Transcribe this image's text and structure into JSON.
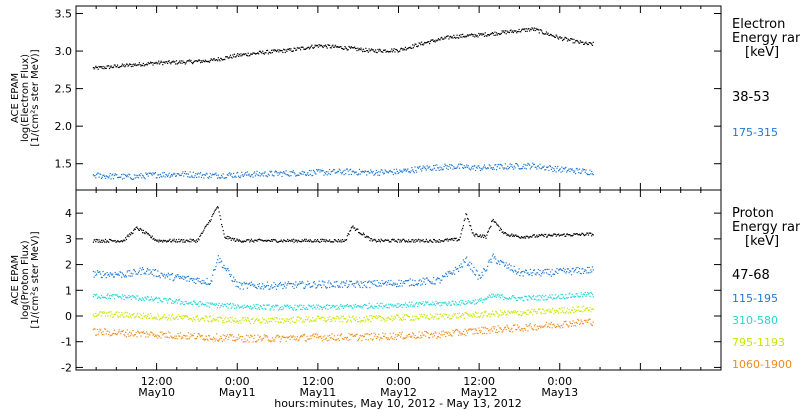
{
  "xaxis": {
    "label": "hours:minutes, May 10, 2012 - May 13, 2012",
    "range_hours": [
      0,
      96
    ],
    "ticks": [
      {
        "t": 12,
        "time": "12:00",
        "day": "May10"
      },
      {
        "t": 24,
        "time": "0:00",
        "day": "May11"
      },
      {
        "t": 36,
        "time": "12:00",
        "day": "May11"
      },
      {
        "t": 48,
        "time": "0:00",
        "day": "May12"
      },
      {
        "t": 60,
        "time": "12:00",
        "day": "May12"
      },
      {
        "t": 72,
        "time": "0:00",
        "day": "May13"
      }
    ]
  },
  "chart_data": [
    {
      "type": "scatter",
      "panel": "electron",
      "ylabel": [
        "ACE EPAM",
        "log(Electron Flux)",
        "[1/(cm²s ster MeV)]"
      ],
      "ylim": [
        1.15,
        3.6
      ],
      "yticks": [
        "1.5",
        "2.0",
        "2.5",
        "3.0",
        "3.5"
      ],
      "legend_title": [
        "Electron",
        "Energy ran",
        "[keV]"
      ],
      "series": [
        {
          "name": "38-53",
          "color": "#000000",
          "x": [
            3,
            8,
            12,
            16,
            20,
            24,
            28,
            32,
            36,
            40,
            44,
            48,
            52,
            56,
            60,
            64,
            68,
            72,
            76
          ],
          "y": [
            2.78,
            2.82,
            2.85,
            2.86,
            2.88,
            2.95,
            2.99,
            3.02,
            3.08,
            3.05,
            3.01,
            3.02,
            3.12,
            3.2,
            3.22,
            3.26,
            3.3,
            3.18,
            3.1
          ]
        },
        {
          "name": "175-315",
          "color": "#1f78d2",
          "x": [
            3,
            8,
            12,
            16,
            20,
            24,
            28,
            32,
            36,
            40,
            44,
            48,
            52,
            56,
            60,
            64,
            68,
            72,
            76
          ],
          "y": [
            1.35,
            1.33,
            1.36,
            1.37,
            1.35,
            1.36,
            1.37,
            1.38,
            1.39,
            1.4,
            1.39,
            1.4,
            1.45,
            1.47,
            1.45,
            1.47,
            1.48,
            1.43,
            1.4
          ]
        }
      ]
    },
    {
      "type": "scatter",
      "panel": "proton",
      "ylabel": [
        "ACE EPAM",
        "log(Proton Flux)",
        "[1/(cm²s ster MeV)]"
      ],
      "ylim": [
        -2.1,
        4.9
      ],
      "yticks": [
        "-2",
        "-1",
        "0",
        "1",
        "2",
        "3",
        "4"
      ],
      "legend_title": [
        "Proton",
        "Energy ran",
        "[keV]"
      ],
      "series": [
        {
          "name": "47-68",
          "color": "#000000",
          "x": [
            3,
            7,
            9,
            12,
            18,
            20,
            21,
            22,
            24,
            30,
            36,
            40,
            41,
            44,
            48,
            54,
            57,
            58,
            59,
            61,
            62,
            63,
            64,
            66,
            70,
            76
          ],
          "y": [
            2.95,
            2.95,
            3.45,
            2.95,
            2.95,
            3.8,
            4.3,
            3.1,
            2.95,
            2.95,
            2.95,
            2.95,
            3.5,
            2.95,
            2.95,
            2.95,
            3.0,
            4.0,
            3.2,
            3.1,
            3.8,
            3.4,
            3.2,
            3.1,
            3.15,
            3.2
          ]
        },
        {
          "name": "115-195",
          "color": "#1f78d2",
          "x": [
            3,
            8,
            10,
            14,
            20,
            21,
            24,
            30,
            36,
            42,
            48,
            54,
            57,
            58,
            60,
            62,
            63,
            66,
            70,
            76
          ],
          "y": [
            1.65,
            1.65,
            1.8,
            1.55,
            1.35,
            2.3,
            1.2,
            1.2,
            1.25,
            1.25,
            1.3,
            1.4,
            1.9,
            2.2,
            1.5,
            2.3,
            2.1,
            1.7,
            1.7,
            1.8
          ]
        },
        {
          "name": "310-580",
          "color": "#22d6d6",
          "x": [
            3,
            8,
            12,
            16,
            20,
            24,
            30,
            36,
            42,
            48,
            54,
            58,
            60,
            62,
            66,
            70,
            76
          ],
          "y": [
            0.8,
            0.75,
            0.65,
            0.55,
            0.45,
            0.4,
            0.35,
            0.35,
            0.4,
            0.45,
            0.5,
            0.55,
            0.6,
            0.8,
            0.7,
            0.75,
            0.85
          ]
        },
        {
          "name": "795-1193",
          "color": "#c8e600",
          "x": [
            3,
            8,
            12,
            16,
            20,
            24,
            30,
            36,
            42,
            48,
            54,
            58,
            62,
            66,
            70,
            76
          ],
          "y": [
            0.1,
            0.05,
            0.0,
            -0.05,
            -0.1,
            -0.15,
            -0.15,
            -0.1,
            -0.1,
            -0.05,
            0.0,
            0.05,
            0.1,
            0.15,
            0.2,
            0.3
          ]
        },
        {
          "name": "1060-1900",
          "color": "#f08c1a",
          "x": [
            3,
            8,
            12,
            16,
            20,
            24,
            30,
            36,
            42,
            48,
            54,
            58,
            62,
            66,
            70,
            76
          ],
          "y": [
            -0.6,
            -0.65,
            -0.7,
            -0.75,
            -0.8,
            -0.85,
            -0.85,
            -0.8,
            -0.8,
            -0.75,
            -0.7,
            -0.6,
            -0.5,
            -0.45,
            -0.35,
            -0.2
          ]
        }
      ]
    }
  ]
}
